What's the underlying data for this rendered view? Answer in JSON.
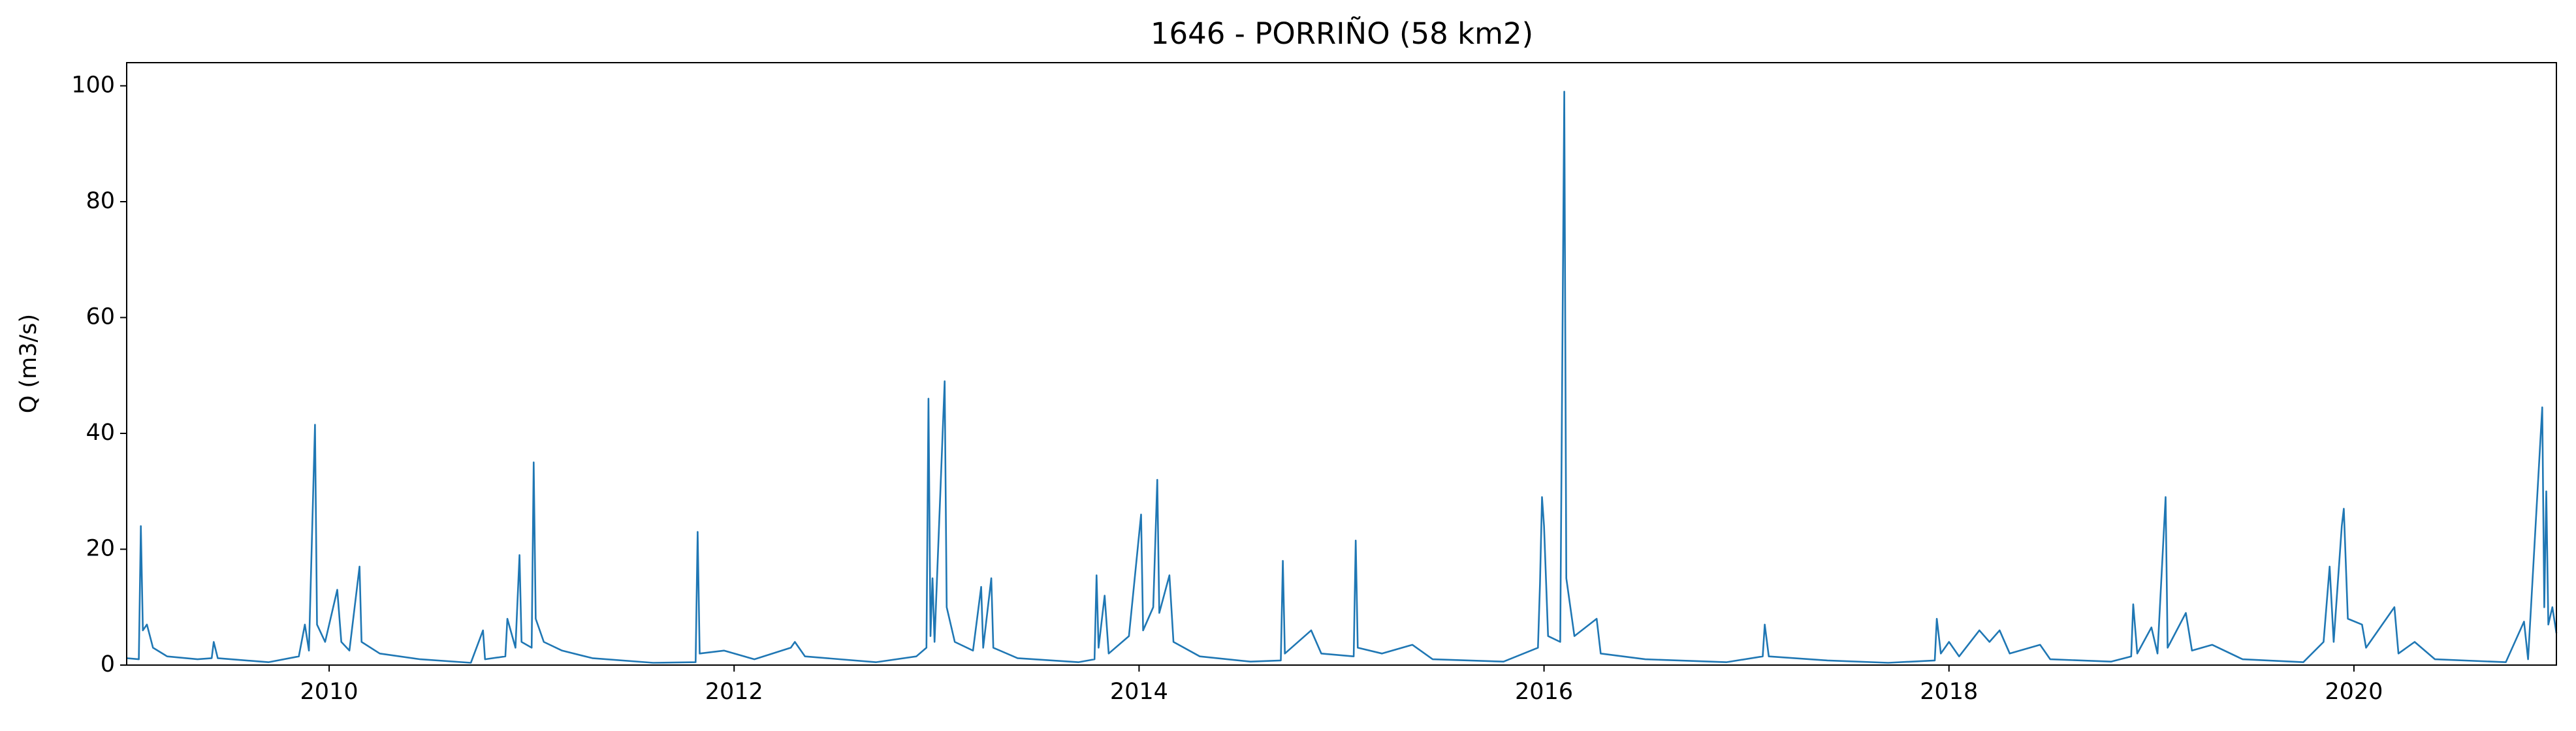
{
  "chart_data": {
    "type": "line",
    "title": "1646 - PORRIÑO (58 km2)",
    "ylabel": "Q (m3/s)",
    "x": [
      2009.0,
      2009.06,
      2009.07,
      2009.08,
      2009.1,
      2009.13,
      2009.2,
      2009.35,
      2009.42,
      2009.43,
      2009.45,
      2009.7,
      2009.85,
      2009.88,
      2009.9,
      2009.93,
      2009.94,
      2009.98,
      2010.04,
      2010.06,
      2010.1,
      2010.15,
      2010.16,
      2010.25,
      2010.45,
      2010.7,
      2010.76,
      2010.77,
      2010.87,
      2010.88,
      2010.92,
      2010.94,
      2010.95,
      2011.0,
      2011.01,
      2011.02,
      2011.06,
      2011.15,
      2011.3,
      2011.6,
      2011.81,
      2011.82,
      2011.83,
      2011.95,
      2012.1,
      2012.28,
      2012.3,
      2012.35,
      2012.7,
      2012.9,
      2012.95,
      2012.96,
      2012.97,
      2012.98,
      2012.99,
      2013.04,
      2013.05,
      2013.09,
      2013.18,
      2013.22,
      2013.23,
      2013.27,
      2013.28,
      2013.4,
      2013.7,
      2013.78,
      2013.79,
      2013.8,
      2013.83,
      2013.85,
      2013.95,
      2014.01,
      2014.02,
      2014.07,
      2014.09,
      2014.1,
      2014.15,
      2014.17,
      2014.3,
      2014.55,
      2014.7,
      2014.71,
      2014.72,
      2014.85,
      2014.9,
      2015.06,
      2015.07,
      2015.08,
      2015.2,
      2015.35,
      2015.45,
      2015.8,
      2015.97,
      2015.98,
      2015.99,
      2016.0,
      2016.02,
      2016.08,
      2016.1,
      2016.11,
      2016.15,
      2016.26,
      2016.28,
      2016.5,
      2016.9,
      2017.08,
      2017.09,
      2017.11,
      2017.4,
      2017.7,
      2017.93,
      2017.94,
      2017.96,
      2018.0,
      2018.05,
      2018.15,
      2018.2,
      2018.25,
      2018.3,
      2018.45,
      2018.5,
      2018.8,
      2018.9,
      2018.91,
      2018.93,
      2019.0,
      2019.03,
      2019.07,
      2019.08,
      2019.17,
      2019.2,
      2019.3,
      2019.45,
      2019.75,
      2019.85,
      2019.88,
      2019.9,
      2019.94,
      2019.95,
      2019.97,
      2020.04,
      2020.06,
      2020.2,
      2020.22,
      2020.3,
      2020.4,
      2020.75,
      2020.84,
      2020.86,
      2020.93,
      2020.94,
      2020.95,
      2020.96,
      2020.98,
      2021.0
    ],
    "series": [
      {
        "name": "Q",
        "color": "#1f77b4",
        "values": [
          1.2,
          1.0,
          24,
          6,
          7,
          3,
          1.5,
          1.0,
          1.2,
          4,
          1.2,
          0.5,
          1.5,
          7,
          2.5,
          41.5,
          7,
          4,
          13,
          4,
          2.5,
          17,
          4,
          2,
          1,
          0.4,
          6,
          1,
          1.5,
          8,
          3,
          19,
          4,
          3,
          35,
          8,
          4,
          2.5,
          1.2,
          0.4,
          0.5,
          23,
          2,
          2.5,
          1,
          3,
          4,
          1.5,
          0.5,
          1.5,
          3,
          46,
          5,
          15,
          4,
          49,
          10,
          4,
          2.5,
          13.5,
          3,
          15,
          3,
          1.2,
          0.5,
          1,
          15.5,
          3,
          12,
          2,
          5,
          26,
          6,
          10,
          32,
          9,
          15.5,
          4,
          1.5,
          0.6,
          0.8,
          18,
          2,
          6,
          2,
          1.5,
          21.5,
          3,
          2,
          3.5,
          1,
          0.6,
          3,
          14,
          29,
          24,
          5,
          4,
          99,
          15,
          5,
          8,
          2,
          1,
          0.5,
          1.5,
          7,
          1.5,
          0.8,
          0.4,
          0.8,
          8,
          2,
          4,
          1.5,
          6,
          4,
          6,
          2,
          3.5,
          1,
          0.6,
          1.5,
          10.5,
          2,
          6.5,
          2,
          29,
          3,
          9,
          2.5,
          3.5,
          1,
          0.5,
          4,
          17,
          4,
          24,
          27,
          8,
          7,
          3,
          10,
          2,
          4,
          1,
          0.5,
          7.5,
          1,
          44.5,
          10,
          30,
          7,
          10,
          5.5
        ]
      }
    ],
    "xlim": [
      2009.0,
      2021.0
    ],
    "xticks": [
      2010,
      2012,
      2014,
      2016,
      2018,
      2020
    ],
    "ylim": [
      0,
      104
    ],
    "yticks": [
      0,
      20,
      40,
      60,
      80,
      100
    ],
    "grid": false
  }
}
